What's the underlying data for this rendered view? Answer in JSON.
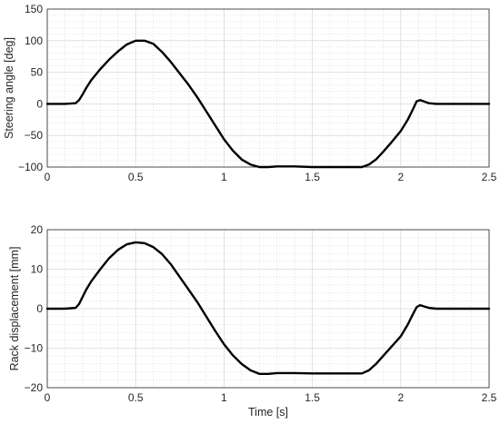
{
  "chart_data": [
    {
      "type": "line",
      "title": "",
      "xlabel": "",
      "ylabel": "Steering angle [deg]",
      "xlim": [
        0,
        2.5
      ],
      "ylim": [
        -100,
        150
      ],
      "xticks": [
        "0",
        "0.5",
        "1",
        "1.5",
        "2",
        "2.5"
      ],
      "xtick_values": [
        0,
        0.5,
        1,
        1.5,
        2,
        2.5
      ],
      "yticks": [
        "150",
        "100",
        "50",
        "0",
        "−50",
        "−100"
      ],
      "ytick_values": [
        150,
        100,
        50,
        0,
        -50,
        -100
      ],
      "grid": true,
      "minor_grid": true,
      "series": [
        {
          "color": "#000000",
          "x": [
            0,
            0.1,
            0.16,
            0.18,
            0.2,
            0.22,
            0.25,
            0.3,
            0.35,
            0.4,
            0.45,
            0.5,
            0.55,
            0.6,
            0.65,
            0.7,
            0.75,
            0.8,
            0.85,
            0.9,
            0.95,
            1.0,
            1.05,
            1.1,
            1.15,
            1.2,
            1.25,
            1.3,
            1.4,
            1.5,
            1.6,
            1.7,
            1.78,
            1.82,
            1.86,
            1.9,
            1.95,
            2.0,
            2.04,
            2.07,
            2.09,
            2.11,
            2.13,
            2.16,
            2.2,
            2.3,
            2.4,
            2.5
          ],
          "y": [
            0,
            0,
            1,
            6,
            15,
            25,
            38,
            55,
            70,
            83,
            94,
            100,
            100,
            95,
            82,
            66,
            48,
            30,
            10,
            -12,
            -34,
            -56,
            -74,
            -88,
            -96,
            -100,
            -100,
            -99,
            -99,
            -100,
            -100,
            -100,
            -100,
            -96,
            -88,
            -76,
            -60,
            -43,
            -25,
            -8,
            4,
            6,
            4,
            1,
            0,
            0,
            0,
            0
          ]
        }
      ]
    },
    {
      "type": "line",
      "title": "",
      "xlabel": "Time [s]",
      "ylabel": "Rack displacement [mm]",
      "xlim": [
        0,
        2.5
      ],
      "ylim": [
        -20,
        20
      ],
      "xticks": [
        "0",
        "0.5",
        "1",
        "1.5",
        "2",
        "2.5"
      ],
      "xtick_values": [
        0,
        0.5,
        1,
        1.5,
        2,
        2.5
      ],
      "yticks": [
        "20",
        "10",
        "0",
        "−10",
        "−20"
      ],
      "ytick_values": [
        20,
        10,
        0,
        -10,
        -20
      ],
      "grid": true,
      "minor_grid": true,
      "series": [
        {
          "color": "#000000",
          "x": [
            0,
            0.1,
            0.16,
            0.18,
            0.2,
            0.22,
            0.25,
            0.3,
            0.35,
            0.4,
            0.45,
            0.5,
            0.55,
            0.6,
            0.65,
            0.7,
            0.75,
            0.8,
            0.85,
            0.9,
            0.95,
            1.0,
            1.05,
            1.1,
            1.15,
            1.2,
            1.25,
            1.3,
            1.4,
            1.5,
            1.6,
            1.7,
            1.78,
            1.82,
            1.86,
            1.9,
            1.95,
            2.0,
            2.04,
            2.07,
            2.09,
            2.11,
            2.13,
            2.16,
            2.2,
            2.3,
            2.4,
            2.5
          ],
          "y": [
            0,
            0,
            0.2,
            1.2,
            3.0,
            4.8,
            7.0,
            10.0,
            12.8,
            14.9,
            16.3,
            16.8,
            16.6,
            15.6,
            13.8,
            11.2,
            8.0,
            4.8,
            1.6,
            -2.0,
            -5.6,
            -9.0,
            -11.8,
            -14.0,
            -15.6,
            -16.5,
            -16.5,
            -16.3,
            -16.3,
            -16.4,
            -16.4,
            -16.4,
            -16.4,
            -15.6,
            -14.0,
            -12.0,
            -9.5,
            -7.0,
            -4.0,
            -1.3,
            0.4,
            0.9,
            0.6,
            0.2,
            0,
            0,
            0,
            0
          ]
        }
      ]
    }
  ]
}
